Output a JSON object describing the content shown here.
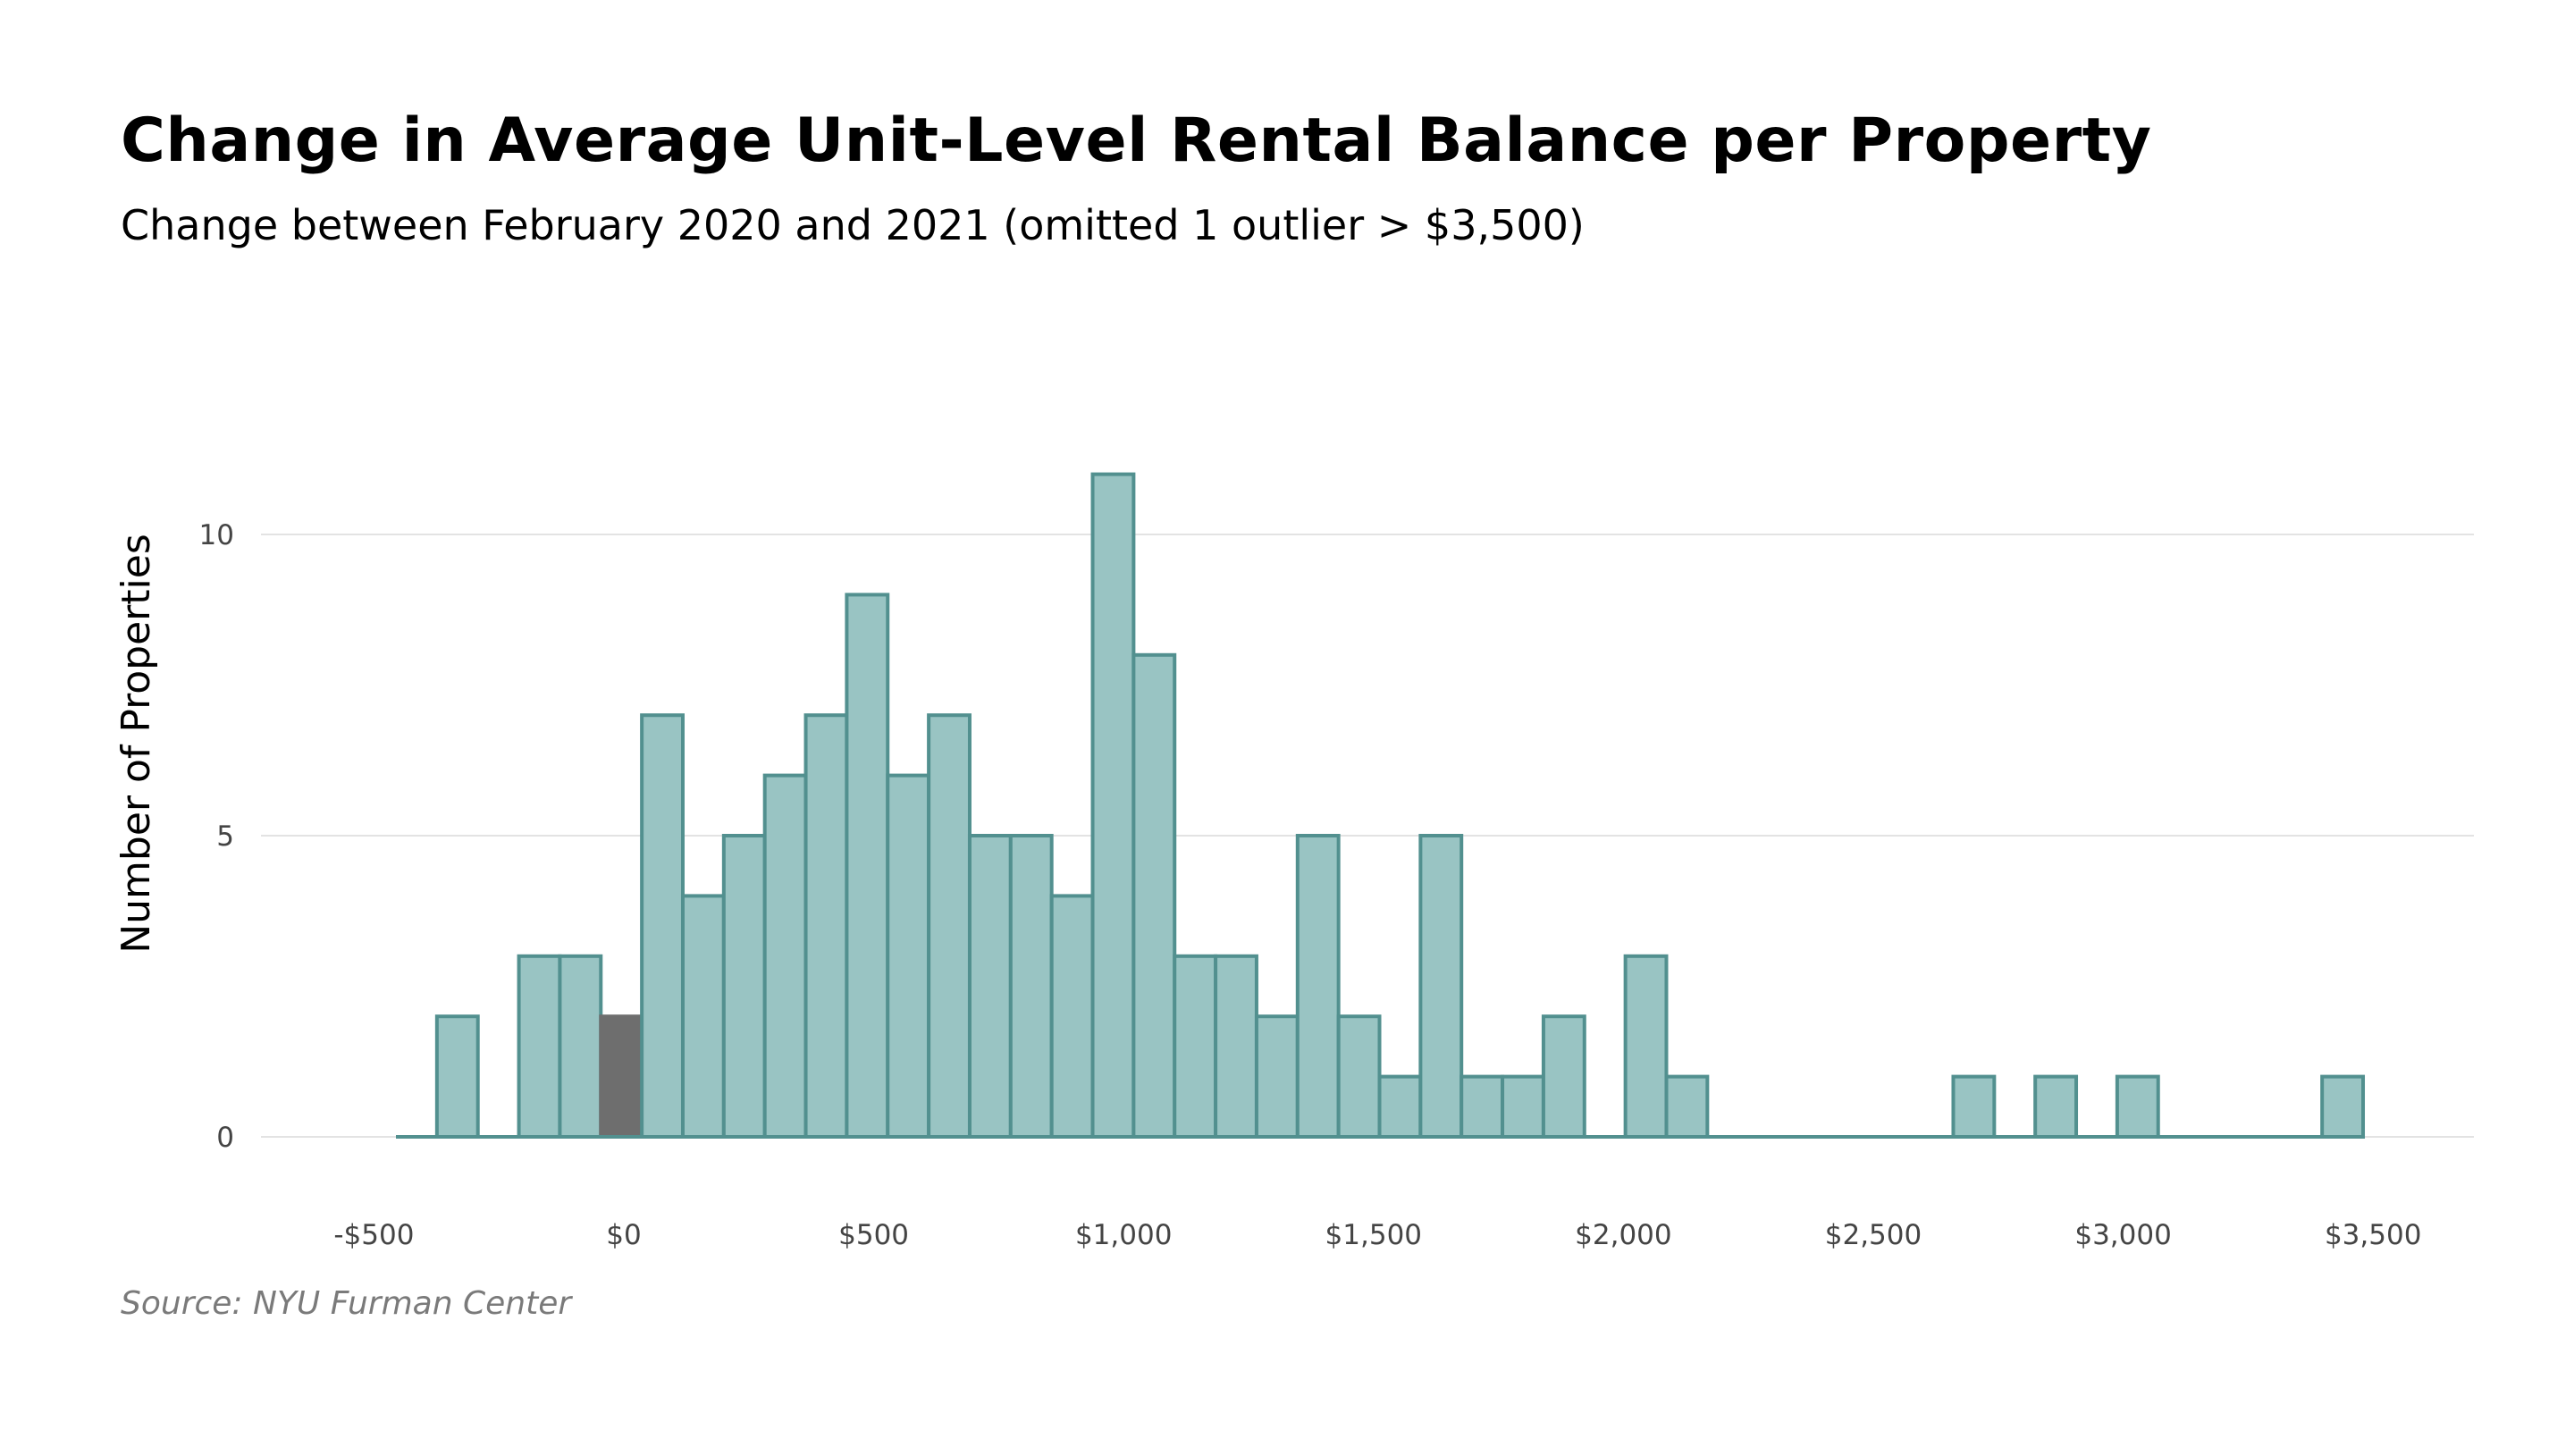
{
  "chart_data": {
    "type": "bar",
    "title": "Change in Average Unit-Level Rental Balance per Property",
    "subtitle": "Change between February 2020 and 2021 (omitted 1 outlier > $3,500)",
    "xlabel": "",
    "ylabel": "Number of Properties",
    "source": "Source: NYU Furman Center",
    "bin_width": 82,
    "bins_start": [
      -456,
      -374,
      -292,
      -210,
      -128,
      -46,
      36,
      118,
      200,
      282,
      364,
      446,
      528,
      610,
      692,
      774,
      856,
      938,
      1020,
      1102,
      1184,
      1266,
      1348,
      1430,
      1512,
      1594,
      1676,
      1758,
      1840,
      1922,
      2004,
      2086,
      2168,
      2250,
      2332,
      2414,
      2496,
      2578,
      2660,
      2742,
      2824,
      2906,
      2988,
      3070,
      3152,
      3234,
      3316,
      3398
    ],
    "values": [
      0,
      2,
      0,
      3,
      3,
      2,
      7,
      4,
      5,
      6,
      7,
      9,
      6,
      7,
      5,
      5,
      4,
      11,
      8,
      3,
      3,
      2,
      5,
      2,
      1,
      5,
      1,
      1,
      2,
      0,
      3,
      1,
      0,
      0,
      0,
      0,
      0,
      0,
      1,
      0,
      1,
      0,
      1,
      0,
      0,
      0,
      0,
      1
    ],
    "highlight_bin_index": 5,
    "bar_color": "#99c4c3",
    "bar_stroke": "#52908f",
    "highlight_color": "#6e6e6e",
    "x_ticks": [
      -500,
      0,
      500,
      1000,
      1500,
      2000,
      2500,
      3000,
      3500
    ],
    "x_tick_labels": [
      "-$500",
      "$0",
      "$500",
      "$1,000",
      "$1,500",
      "$2,000",
      "$2,500",
      "$3,000",
      "$3,500"
    ],
    "y_ticks": [
      0,
      5,
      10
    ],
    "y_tick_labels": [
      "0",
      "5",
      "10"
    ],
    "xlim": [
      -480,
      3500
    ],
    "ylim": [
      0,
      11
    ],
    "grid": true
  }
}
